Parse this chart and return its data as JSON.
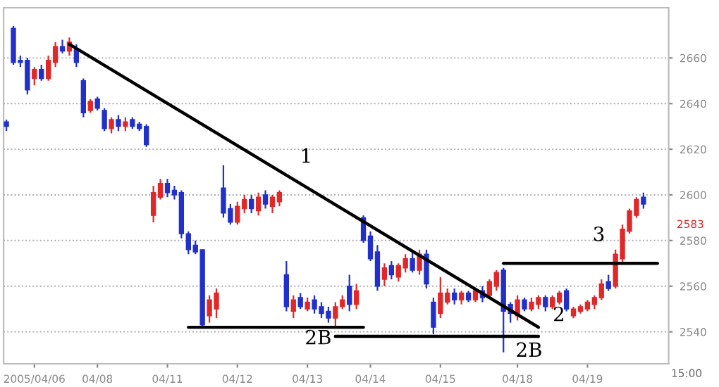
{
  "chart_data": {
    "type": "candlestick",
    "categories": [
      null,
      null,
      null,
      null,
      "2005/04/06",
      null,
      null,
      null,
      null,
      null,
      null,
      null,
      null,
      "04/08",
      null,
      null,
      null,
      null,
      null,
      null,
      null,
      null,
      null,
      "04/11",
      null,
      null,
      null,
      null,
      null,
      null,
      null,
      null,
      null,
      "04/12",
      null,
      null,
      null,
      null,
      null,
      null,
      null,
      null,
      null,
      "04/13",
      null,
      null,
      null,
      null,
      null,
      null,
      null,
      null,
      "04/14",
      null,
      null,
      null,
      null,
      null,
      null,
      null,
      null,
      null,
      "04/15",
      null,
      null,
      null,
      null,
      null,
      null,
      null,
      null,
      null,
      null,
      "04/18",
      null,
      null,
      null,
      null,
      null,
      null,
      null,
      null,
      null,
      "04/19",
      null,
      null,
      null,
      null,
      null,
      null,
      null,
      null,
      null,
      null
    ],
    "ohlc": [
      [
        2632,
        2633,
        2628,
        2630
      ],
      [
        2673,
        2674,
        2657,
        2658
      ],
      [
        2659,
        2661,
        2656,
        2658
      ],
      [
        2659,
        2660,
        2644,
        2646
      ],
      [
        2651,
        2656,
        2648,
        2655
      ],
      [
        2655,
        2657,
        2650,
        2651
      ],
      [
        2651,
        2661,
        2650,
        2659
      ],
      [
        2658,
        2667,
        2656,
        2665
      ],
      [
        2665,
        2668,
        2662,
        2663
      ],
      [
        2663,
        2669,
        2661,
        2667
      ],
      [
        2664,
        2666,
        2656,
        2658
      ],
      [
        2650,
        2651,
        2634,
        2636
      ],
      [
        2637,
        2642,
        2636,
        2641
      ],
      [
        2642,
        2643,
        2637,
        2638
      ],
      [
        2637,
        2638,
        2628,
        2629
      ],
      [
        2629,
        2634,
        2627,
        2633
      ],
      [
        2633,
        2635,
        2628,
        2630
      ],
      [
        2630,
        2634,
        2628,
        2632
      ],
      [
        2633,
        2634,
        2629,
        2630
      ],
      [
        2631,
        2632,
        2628,
        2629
      ],
      [
        2630,
        2631,
        2621,
        2622
      ],
      [
        2591,
        2604,
        2588,
        2601
      ],
      [
        2599,
        2607,
        2598,
        2605
      ],
      [
        2605,
        2607,
        2599,
        2601
      ],
      [
        2602,
        2604,
        2598,
        2600
      ],
      [
        2601,
        2602,
        2581,
        2583
      ],
      [
        2583,
        2584,
        2574,
        2576
      ],
      [
        2578,
        2580,
        2574,
        2575
      ],
      [
        2576,
        2576,
        2542,
        2543
      ],
      [
        2547,
        2556,
        2544,
        2554
      ],
      [
        2550,
        2559,
        2546,
        2557
      ],
      [
        2603,
        2613,
        2590,
        2592
      ],
      [
        2594,
        2596,
        2587,
        2588
      ],
      [
        2588,
        2597,
        2587,
        2595
      ],
      [
        2594,
        2600,
        2592,
        2598
      ],
      [
        2598,
        2600,
        2592,
        2594
      ],
      [
        2593,
        2601,
        2591,
        2599
      ],
      [
        2600,
        2602,
        2594,
        2596
      ],
      [
        2595,
        2600,
        2592,
        2599
      ],
      [
        2597,
        2602,
        2595,
        2601
      ],
      [
        2565,
        2571,
        2549,
        2551
      ],
      [
        2549,
        2556,
        2546,
        2554
      ],
      [
        2555,
        2557,
        2550,
        2551
      ],
      [
        2550,
        2555,
        2549,
        2553
      ],
      [
        2554,
        2556,
        2548,
        2550
      ],
      [
        2551,
        2553,
        2546,
        2548
      ],
      [
        2549,
        2551,
        2544,
        2546
      ],
      [
        2546,
        2553,
        2542,
        2551
      ],
      [
        2551,
        2556,
        2550,
        2554
      ],
      [
        2560,
        2565,
        2549,
        2552
      ],
      [
        2552,
        2561,
        2550,
        2558
      ],
      [
        2590,
        2591,
        2579,
        2580
      ],
      [
        2582,
        2584,
        2571,
        2572
      ],
      [
        2575,
        2578,
        2558,
        2560
      ],
      [
        2563,
        2570,
        2560,
        2568
      ],
      [
        2569,
        2571,
        2563,
        2565
      ],
      [
        2564,
        2570,
        2562,
        2569
      ],
      [
        2568,
        2574,
        2566,
        2572
      ],
      [
        2572,
        2575,
        2566,
        2567
      ],
      [
        2567,
        2576,
        2565,
        2574
      ],
      [
        2574,
        2576,
        2559,
        2561
      ],
      [
        2553,
        2555,
        2539,
        2542
      ],
      [
        2548,
        2564,
        2546,
        2557
      ],
      [
        2553,
        2559,
        2552,
        2557
      ],
      [
        2557,
        2559,
        2552,
        2554
      ],
      [
        2554,
        2558,
        2552,
        2557
      ],
      [
        2557,
        2558,
        2553,
        2554
      ],
      [
        2554,
        2559,
        2553,
        2558
      ],
      [
        2558,
        2560,
        2553,
        2555
      ],
      [
        2556,
        2563,
        2555,
        2562
      ],
      [
        2560,
        2567,
        2558,
        2566
      ],
      [
        2567,
        2568,
        2531,
        2549
      ],
      [
        2552,
        2553,
        2544,
        2548
      ],
      [
        2547,
        2556,
        2545,
        2554
      ],
      [
        2554,
        2555,
        2549,
        2550
      ],
      [
        2550,
        2555,
        2549,
        2553
      ],
      [
        2552,
        2556,
        2550,
        2555
      ],
      [
        2555,
        2556,
        2549,
        2551
      ],
      [
        2551,
        2556,
        2550,
        2555
      ],
      [
        2553,
        2558,
        2552,
        2557
      ],
      [
        2558,
        2559,
        2549,
        2550
      ],
      [
        2547,
        2551,
        2546,
        2550
      ],
      [
        2549,
        2552,
        2548,
        2551
      ],
      [
        2550,
        2554,
        2549,
        2553
      ],
      [
        2552,
        2556,
        2550,
        2555
      ],
      [
        2555,
        2563,
        2554,
        2561
      ],
      [
        2562,
        2565,
        2558,
        2559
      ],
      [
        2560,
        2576,
        2559,
        2574
      ],
      [
        2572,
        2587,
        2570,
        2585
      ],
      [
        2584,
        2594,
        2583,
        2593
      ],
      [
        2591,
        2599,
        2590,
        2598
      ],
      [
        2599,
        2601,
        2594,
        2596
      ],
      null,
      null
    ],
    "colors": [
      "#2030c8",
      "#2030c8",
      "#2030c8",
      "#2030c8",
      "#e02828",
      "#2030c8",
      "#e02828",
      "#e02828",
      "#2030c8",
      "#e02828",
      "#2030c8",
      "#2030c8",
      "#e02828",
      "#2030c8",
      "#2030c8",
      "#e02828",
      "#2030c8",
      "#e02828",
      "#2030c8",
      "#2030c8",
      "#2030c8",
      "#e02828",
      "#e02828",
      "#2030c8",
      "#2030c8",
      "#2030c8",
      "#2030c8",
      "#2030c8",
      "#2030c8",
      "#e02828",
      "#e02828",
      "#2030c8",
      "#2030c8",
      "#e02828",
      "#e02828",
      "#2030c8",
      "#e02828",
      "#2030c8",
      "#e02828",
      "#e02828",
      "#2030c8",
      "#e02828",
      "#2030c8",
      "#e02828",
      "#2030c8",
      "#2030c8",
      "#2030c8",
      "#e02828",
      "#e02828",
      "#2030c8",
      "#e02828",
      "#2030c8",
      "#2030c8",
      "#2030c8",
      "#e02828",
      "#2030c8",
      "#e02828",
      "#e02828",
      "#2030c8",
      "#e02828",
      "#2030c8",
      "#2030c8",
      "#e02828",
      "#e02828",
      "#2030c8",
      "#e02828",
      "#2030c8",
      "#e02828",
      "#2030c8",
      "#e02828",
      "#e02828",
      "#2030c8",
      "#2030c8",
      "#e02828",
      "#2030c8",
      "#e02828",
      "#e02828",
      "#2030c8",
      "#e02828",
      "#e02828",
      "#2030c8",
      "#e02828",
      "#e02828",
      "#e02828",
      "#e02828",
      "#e02828",
      "#2030c8",
      "#e02828",
      "#e02828",
      "#e02828",
      "#e02828",
      "#2030c8",
      null,
      null
    ],
    "series": [
      {
        "type": "line",
        "color": "#000000",
        "values": [
          null,
          null,
          null,
          null,
          null,
          null,
          null,
          null,
          null,
          2666,
          null,
          null,
          null,
          null,
          null,
          null,
          null,
          null,
          null,
          null,
          null,
          null,
          null,
          null,
          null,
          null,
          null,
          null,
          null,
          null,
          null,
          null,
          null,
          null,
          null,
          null,
          null,
          null,
          null,
          null,
          null,
          null,
          null,
          null,
          null,
          null,
          null,
          null,
          null,
          null,
          null,
          null,
          null,
          null,
          null,
          null,
          null,
          null,
          null,
          null,
          null,
          null,
          null,
          null,
          null,
          null,
          null,
          null,
          null,
          null,
          null,
          null,
          null,
          null,
          null,
          null,
          2542,
          null,
          null,
          null,
          null,
          null,
          null,
          null,
          null,
          null,
          null,
          null,
          null,
          null,
          null,
          null,
          null,
          null
        ]
      },
      {
        "type": "line",
        "color": "#000000",
        "values": [
          null,
          null,
          null,
          null,
          null,
          null,
          null,
          null,
          null,
          null,
          null,
          null,
          null,
          null,
          null,
          null,
          null,
          null,
          null,
          null,
          null,
          null,
          null,
          null,
          null,
          null,
          2542,
          null,
          null,
          null,
          null,
          null,
          null,
          null,
          null,
          null,
          null,
          null,
          null,
          null,
          null,
          null,
          null,
          null,
          null,
          null,
          null,
          null,
          null,
          null,
          null,
          2542,
          null,
          null,
          null,
          null,
          null,
          null,
          null,
          null,
          null,
          null,
          null,
          null,
          null,
          null,
          null,
          null,
          null,
          null,
          null,
          null,
          null,
          null,
          null,
          null,
          null,
          null,
          null,
          null,
          null,
          null,
          null,
          null,
          null,
          null,
          null,
          null,
          null,
          null,
          null,
          null,
          null,
          null
        ]
      },
      {
        "type": "line",
        "color": "#000000",
        "values": [
          null,
          null,
          null,
          null,
          null,
          null,
          null,
          null,
          null,
          null,
          null,
          null,
          null,
          null,
          null,
          null,
          null,
          null,
          null,
          null,
          null,
          null,
          null,
          null,
          null,
          null,
          null,
          null,
          null,
          null,
          null,
          null,
          null,
          null,
          null,
          null,
          null,
          null,
          null,
          null,
          null,
          null,
          null,
          null,
          null,
          null,
          null,
          2538,
          null,
          null,
          null,
          null,
          null,
          null,
          null,
          null,
          null,
          null,
          null,
          null,
          null,
          null,
          null,
          null,
          null,
          null,
          null,
          null,
          null,
          null,
          null,
          null,
          null,
          null,
          null,
          null,
          2538,
          null,
          null,
          null,
          null,
          null,
          null,
          null,
          null,
          null,
          null,
          null,
          null,
          null,
          null,
          null,
          null,
          null
        ]
      },
      {
        "type": "line",
        "color": "#000000",
        "values": [
          null,
          null,
          null,
          null,
          null,
          null,
          null,
          null,
          null,
          null,
          null,
          null,
          null,
          null,
          null,
          null,
          null,
          null,
          null,
          null,
          null,
          null,
          null,
          null,
          null,
          null,
          null,
          null,
          null,
          null,
          null,
          null,
          null,
          null,
          null,
          null,
          null,
          null,
          null,
          null,
          null,
          null,
          null,
          null,
          null,
          null,
          null,
          null,
          null,
          null,
          null,
          null,
          null,
          null,
          null,
          null,
          null,
          null,
          null,
          null,
          null,
          null,
          null,
          null,
          null,
          null,
          null,
          null,
          null,
          null,
          null,
          2570,
          null,
          null,
          null,
          null,
          null,
          null,
          null,
          null,
          null,
          null,
          null,
          null,
          null,
          null,
          null,
          null,
          null,
          null,
          null,
          null,
          null,
          2570
        ]
      }
    ],
    "ylim": [
      2526,
      2682
    ],
    "yticks": [
      2540,
      2560,
      2580,
      2600,
      2620,
      2640,
      2660
    ],
    "grid": "y",
    "annotations": [
      "1",
      "2B",
      "2B",
      "2",
      "3",
      "2583",
      "15:00"
    ]
  }
}
